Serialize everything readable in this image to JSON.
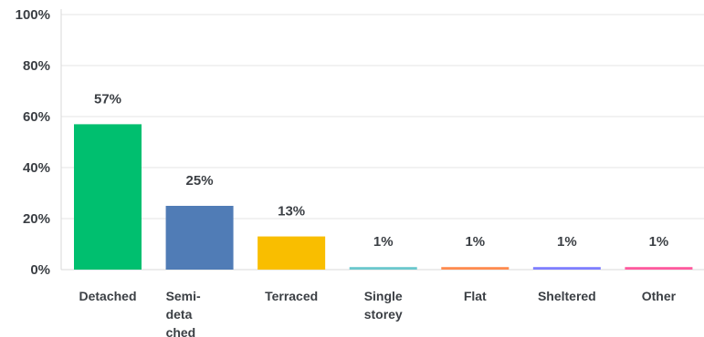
{
  "chart_data": {
    "type": "bar",
    "categories": [
      [
        "Detached"
      ],
      [
        "Semi-",
        "deta",
        "ched"
      ],
      [
        "Terraced"
      ],
      [
        "Single",
        "storey"
      ],
      [
        "Flat"
      ],
      [
        "Sheltered"
      ],
      [
        "Other"
      ]
    ],
    "values": [
      57,
      25,
      13,
      1,
      1,
      1,
      1
    ],
    "data_labels": [
      "57%",
      "25%",
      "13%",
      "1%",
      "1%",
      "1%",
      "1%"
    ],
    "colors": [
      "#00bf6f",
      "#507cb6",
      "#f9be00",
      "#6bc8cd",
      "#ff8b4f",
      "#7f7fff",
      "#ff5a9e"
    ],
    "ylim": [
      0,
      100
    ],
    "yticks": [
      0,
      20,
      40,
      60,
      80,
      100
    ],
    "ytick_labels": [
      "0%",
      "20%",
      "40%",
      "60%",
      "80%",
      "100%"
    ],
    "grid": true,
    "title": "",
    "xlabel": "",
    "ylabel": ""
  }
}
